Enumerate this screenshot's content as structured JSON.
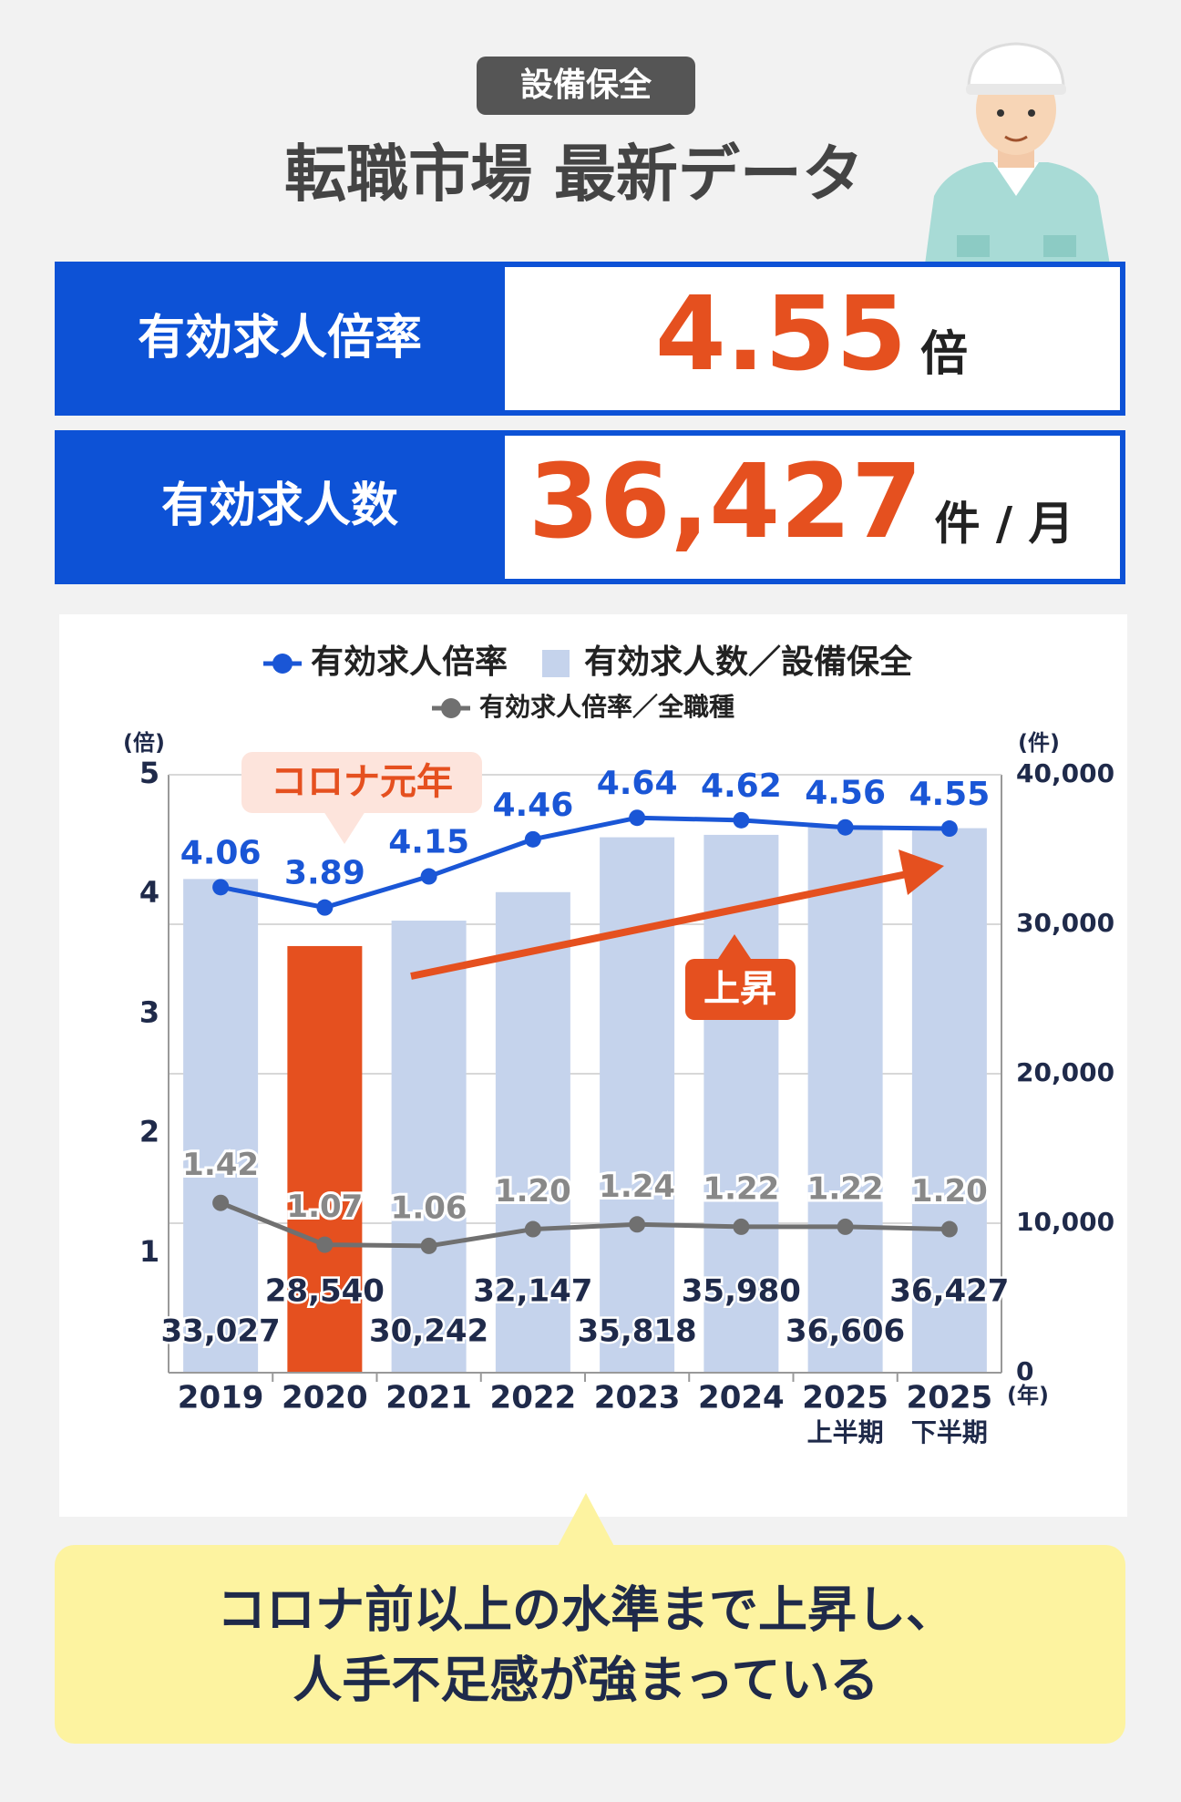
{
  "header": {
    "badge": "設備保全",
    "title": "転職市場 最新データ"
  },
  "stats": [
    {
      "label": "有効求人倍率",
      "value": "4.55",
      "unit": "倍"
    },
    {
      "label": "有効求人数",
      "value": "36,427",
      "unit": "件 / 月"
    }
  ],
  "chart_data": {
    "type": "bar_line",
    "categories": [
      [
        "2019"
      ],
      [
        "2020"
      ],
      [
        "2021"
      ],
      [
        "2022"
      ],
      [
        "2023"
      ],
      [
        "2024"
      ],
      [
        "2025",
        "上半期"
      ],
      [
        "2025",
        "下半期"
      ]
    ],
    "series": [
      {
        "name": "有効求人数／設備保全",
        "type": "bar",
        "axis": "y2",
        "color": "#c5d3ec",
        "colors": [
          "#c5d3ec",
          "#e5501f",
          "#c5d3ec",
          "#c5d3ec",
          "#c5d3ec",
          "#c5d3ec",
          "#c5d3ec",
          "#c5d3ec"
        ],
        "values": [
          33027,
          28540,
          30242,
          32147,
          35818,
          35980,
          36606,
          36427
        ],
        "value_labels": [
          "33,027",
          "28,540",
          "30,242",
          "32,147",
          "35,818",
          "35,980",
          "36,606",
          "36,427"
        ]
      },
      {
        "name": "有効求人倍率",
        "type": "line",
        "axis": "y",
        "color": "#1a56d6",
        "values": [
          4.06,
          3.89,
          4.15,
          4.46,
          4.64,
          4.62,
          4.56,
          4.55
        ]
      },
      {
        "name": "有効求人倍率／全職種",
        "type": "line",
        "axis": "y",
        "color": "#707070",
        "values": [
          1.42,
          1.07,
          1.06,
          1.2,
          1.24,
          1.22,
          1.22,
          1.2
        ],
        "value_labels": [
          "1.42",
          "1.07",
          "1.06",
          "1.20",
          "1.24",
          "1.22",
          "1.22",
          "1.20"
        ]
      }
    ],
    "ylim": [
      0,
      5
    ],
    "yticks": [
      1,
      2,
      3,
      4,
      5
    ],
    "y_label": "(倍)",
    "y2lim": [
      0,
      40000
    ],
    "y2ticks": [
      0,
      {
        "value": 10000,
        "label": "10,000"
      },
      {
        "value": 20000,
        "label": "20,000"
      },
      {
        "value": 30000,
        "label": "30,000"
      },
      {
        "value": 40000,
        "label": "40,000"
      }
    ],
    "y2_label": "(件)",
    "x_label": "(年)",
    "grid": true,
    "annotations": [
      "コロナ元年",
      "上昇"
    ]
  },
  "callout": {
    "lines": [
      "コロナ前以上の水準まで上昇し、",
      "人手不足感が強まっている"
    ]
  }
}
